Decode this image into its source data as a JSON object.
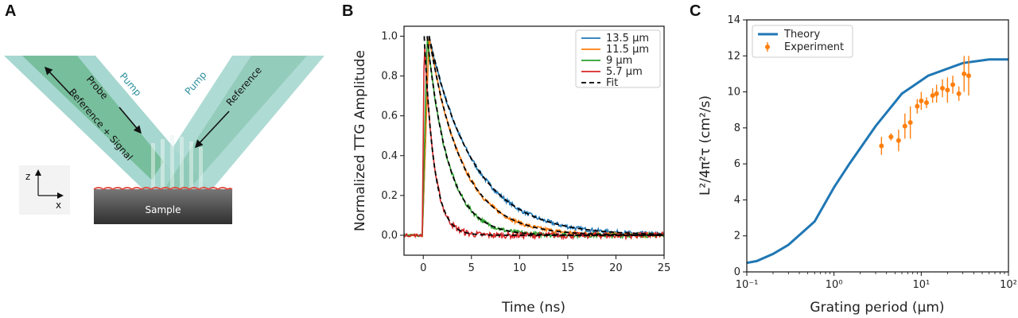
{
  "panels": {
    "a": "A",
    "b": "B",
    "c": "C"
  },
  "diagram": {
    "pump_left": "Pump",
    "pump_right": "Pump",
    "probe": "Probe",
    "reference_signal": "Reference + Signal",
    "reference": "Reference",
    "sample": "Sample",
    "axis_z": "z",
    "axis_x": "x",
    "colors": {
      "beam_outer": "#9fd3cc",
      "beam_inner": "#5fb38d",
      "pump_text": "#2b8f9c",
      "sample_top": "#777777",
      "sample_bottom": "#333333",
      "sample_edge": "#e0463c"
    }
  },
  "chart_data": [
    {
      "type": "line",
      "xlabel": "Time (ns)",
      "ylabel": "Normalized TTG Amplitude",
      "xlim": [
        -2,
        25
      ],
      "ylim": [
        -0.1,
        1.05
      ],
      "x_ticks": [
        "0",
        "5",
        "10",
        "15",
        "20",
        "25"
      ],
      "y_ticks": [
        "0.0",
        "0.2",
        "0.4",
        "0.6",
        "0.8",
        "1.0"
      ],
      "legend_position": "top-right",
      "series": [
        {
          "name": "13.5 μm",
          "color": "#1f77b4",
          "decay_ns": 4.6,
          "peak_time_ns": 0.6
        },
        {
          "name": "11.5 μm",
          "color": "#ff7f0e",
          "decay_ns": 3.4,
          "peak_time_ns": 0.6
        },
        {
          "name": "9 μm",
          "color": "#2ca02c",
          "decay_ns": 2.2,
          "peak_time_ns": 0.4
        },
        {
          "name": "5.7 μm",
          "color": "#d62728",
          "decay_ns": 1.0,
          "peak_time_ns": 0.1
        }
      ],
      "fit_label": "Fit",
      "fit_color": "#000000"
    },
    {
      "type": "line",
      "xlabel": "Grating period (μm)",
      "ylabel": "L²/4π²τ (cm²/s)",
      "xscale": "log",
      "xlim": [
        0.1,
        100
      ],
      "ylim": [
        0,
        14
      ],
      "x_ticks": [
        "10⁻¹",
        "10⁰",
        "10¹",
        "10²"
      ],
      "y_ticks": [
        "0",
        "2",
        "4",
        "6",
        "8",
        "10",
        "12",
        "14"
      ],
      "legend_position": "top-left",
      "theory": {
        "name": "Theory",
        "color": "#1f77b4",
        "x": [
          0.1,
          0.13,
          0.2,
          0.3,
          0.6,
          1.0,
          1.5,
          3.0,
          6.0,
          12.0,
          30.0,
          60.0,
          100.0
        ],
        "y": [
          0.5,
          0.6,
          1.0,
          1.5,
          2.8,
          4.7,
          6.0,
          8.1,
          9.9,
          10.9,
          11.6,
          11.8,
          11.8
        ]
      },
      "experiment": {
        "name": "Experiment",
        "color": "#ff7f0e",
        "x": [
          3.5,
          4.5,
          5.5,
          6.5,
          7.5,
          9.0,
          10.0,
          11.5,
          13.5,
          15.0,
          17.5,
          20.0,
          23.0,
          27.0,
          31.0,
          35.0
        ],
        "y": [
          7.0,
          7.5,
          7.3,
          8.1,
          8.3,
          9.2,
          9.5,
          9.4,
          9.8,
          9.9,
          10.2,
          10.1,
          10.4,
          9.9,
          11.0,
          10.9
        ],
        "err": [
          0.5,
          0.2,
          0.6,
          0.7,
          0.9,
          0.4,
          0.5,
          0.3,
          0.4,
          0.5,
          0.5,
          0.7,
          0.5,
          0.4,
          1.0,
          1.1
        ]
      }
    }
  ]
}
